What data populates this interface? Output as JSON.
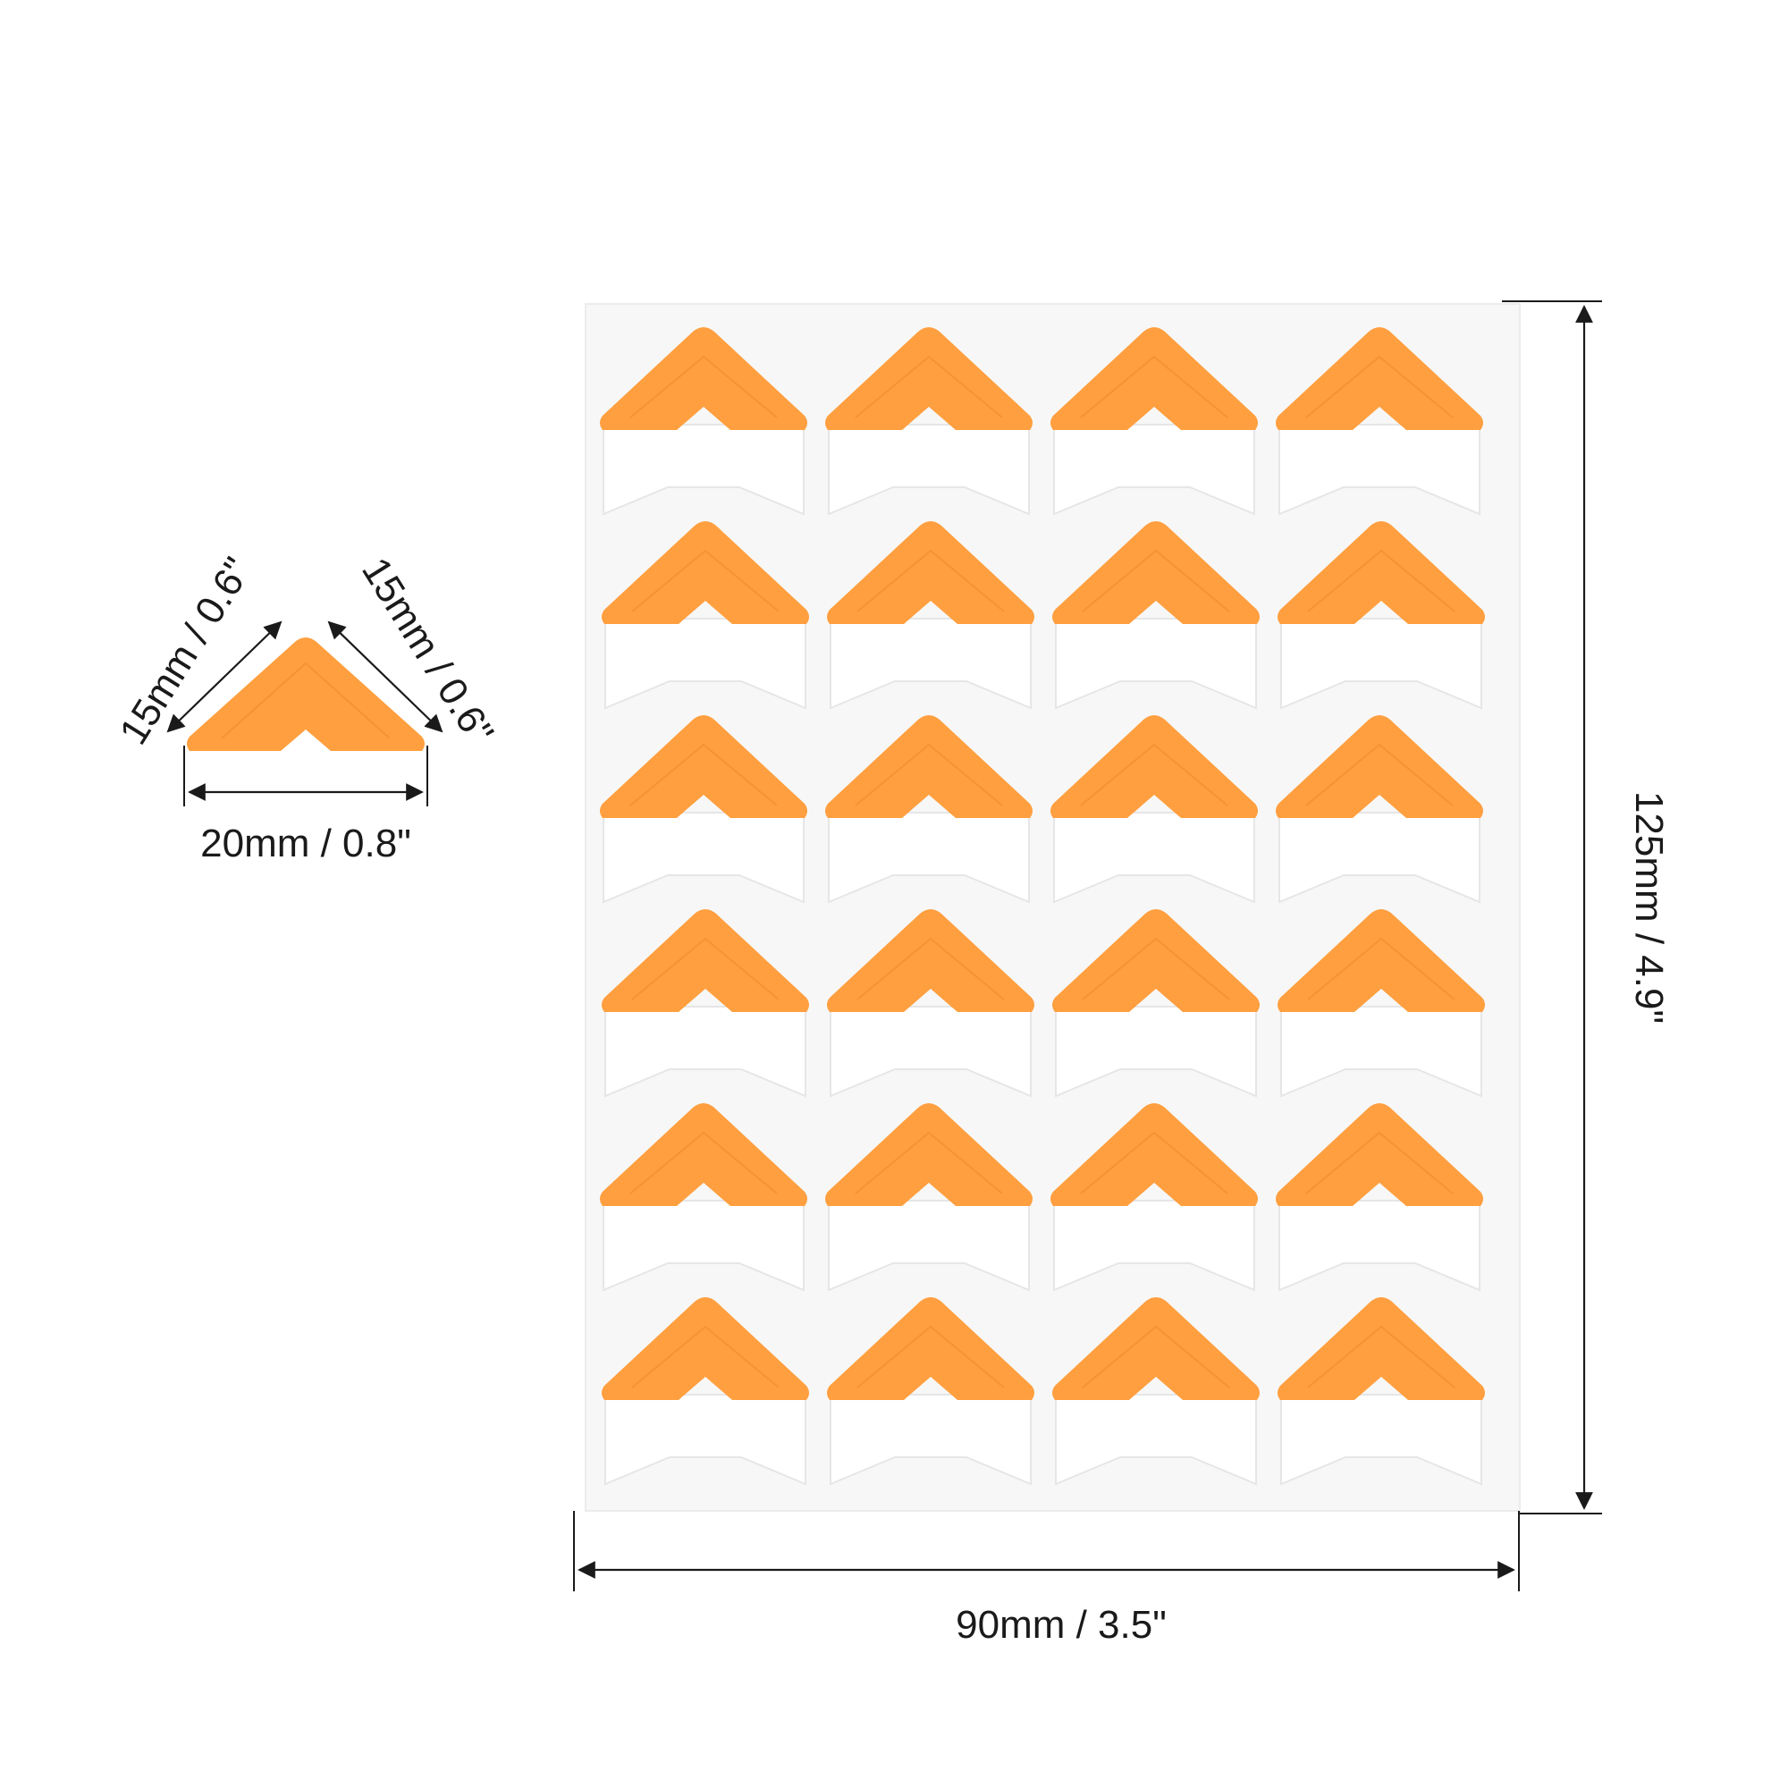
{
  "product": {
    "sticker_color": "#ff9f3f",
    "emboss_color": "#e88a2e",
    "sheet_color": "#f7f7f7",
    "rows": 6,
    "columns": 4
  },
  "dimensions": {
    "sheet_width": "90mm / 3.5\"",
    "sheet_height": "125mm / 4.9\"",
    "corner_side_left": "15mm / 0.6\"",
    "corner_side_right": "15mm / 0.6\"",
    "corner_base": "20mm / 0.8\""
  }
}
